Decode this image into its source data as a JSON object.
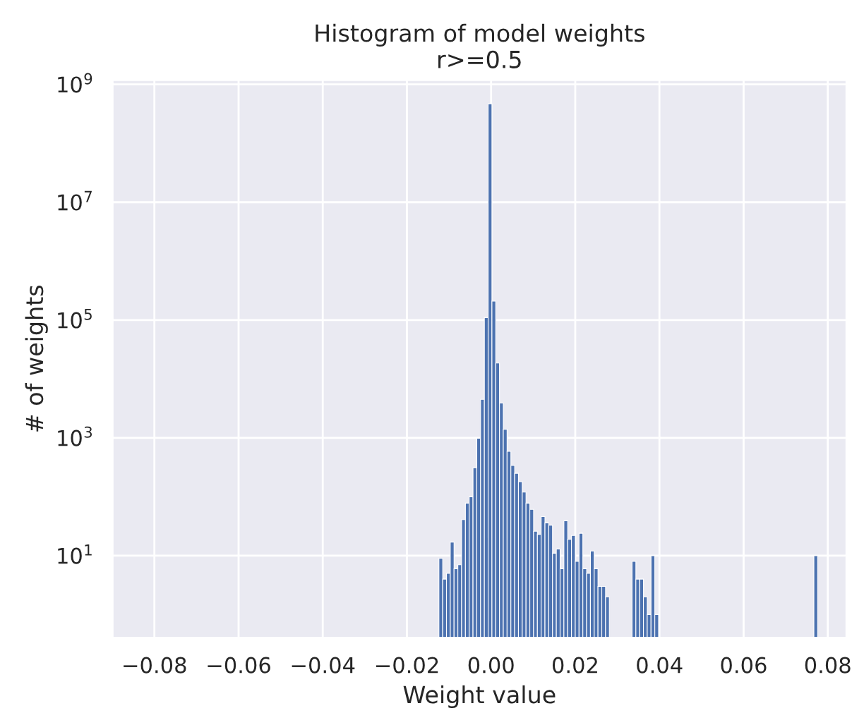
{
  "chart_data": {
    "type": "histogram",
    "title": "Histogram of model weights\nr>=0.5",
    "xlabel": "Weight value",
    "ylabel": "# of weights",
    "bins": [
      -0.0124,
      -0.0115,
      -0.0106,
      -0.0097,
      -0.0088,
      -0.0079,
      -0.007,
      -0.0061,
      -0.0052,
      -0.0043,
      -0.0034,
      -0.0025,
      -0.0016,
      -0.0007,
      0.0002,
      0.0011,
      0.002,
      0.0029,
      0.0038,
      0.0047,
      0.0056,
      0.0065,
      0.0074,
      0.0083,
      0.0092,
      0.0101,
      0.011,
      0.0119,
      0.0128,
      0.0137,
      0.0146,
      0.0155,
      0.0164,
      0.0173,
      0.0182,
      0.0191,
      0.02,
      0.0209,
      0.0218,
      0.0227,
      0.0236,
      0.0245,
      0.0254,
      0.0263,
      0.0272,
      0.0281,
      0.029,
      0.0299,
      0.0308,
      0.0317,
      0.0326,
      0.0335,
      0.0344,
      0.0353,
      0.0362,
      0.0371,
      0.038,
      0.0389,
      0.0398,
      0.0407,
      0.0416,
      0.0425,
      0.0434,
      0.0443,
      0.0452,
      0.0461,
      0.047,
      0.0479,
      0.0488,
      0.0497,
      0.0506,
      0.0515,
      0.0524,
      0.0533,
      0.0542,
      0.0551,
      0.056,
      0.0569,
      0.0578,
      0.0587,
      0.0596,
      0.0605,
      0.0614,
      0.0623,
      0.0632,
      0.0641,
      0.065,
      0.0659,
      0.0668,
      0.0677,
      0.0686,
      0.0695,
      0.0704,
      0.0713,
      0.0722,
      0.0731,
      0.074,
      0.0749,
      0.0758,
      0.0767,
      0.0776
    ],
    "values": [
      9,
      4,
      5,
      17,
      6,
      7,
      41,
      78,
      100,
      310,
      980,
      4500,
      110000,
      470000000,
      210000,
      18600,
      3900,
      1400,
      590,
      340,
      250,
      180,
      120,
      78,
      61,
      26,
      23,
      46,
      36,
      33,
      11,
      13,
      6,
      39,
      19,
      22,
      8,
      24,
      6,
      5,
      12,
      6,
      3,
      3,
      2,
      null,
      null,
      null,
      null,
      null,
      null,
      8,
      4,
      4,
      2,
      1,
      10,
      1,
      null,
      null,
      null,
      null,
      null,
      null,
      null,
      null,
      null,
      null,
      null,
      null,
      null,
      null,
      null,
      null,
      null,
      null,
      null,
      null,
      null,
      null,
      null,
      null,
      null,
      null,
      null,
      null,
      null,
      null,
      null,
      null,
      null,
      null,
      null,
      null,
      null,
      null,
      null,
      null,
      null,
      10
    ],
    "color": "#4c72b0",
    "log": "y",
    "grid": true,
    "xlim": [
      -0.09,
      0.0845
    ],
    "ylim": [
      0.4,
      1200000000.0
    ],
    "xticks": [
      {
        "value": -0.08,
        "label": "−0.08"
      },
      {
        "value": -0.06,
        "label": "−0.06"
      },
      {
        "value": -0.04,
        "label": "−0.04"
      },
      {
        "value": -0.02,
        "label": "−0.02"
      },
      {
        "value": 0.0,
        "label": "0.00"
      },
      {
        "value": 0.02,
        "label": "0.02"
      },
      {
        "value": 0.04,
        "label": "0.04"
      },
      {
        "value": 0.06,
        "label": "0.06"
      },
      {
        "value": 0.08,
        "label": "0.08"
      }
    ],
    "yticks": [
      {
        "value": 10,
        "label": "10$^{1}$"
      },
      {
        "value": 1000,
        "label": "10$^{3}$"
      },
      {
        "value": 100000,
        "label": "10$^{5}$"
      },
      {
        "value": 10000000,
        "label": "10$^{7}$"
      },
      {
        "value": 1000000000,
        "label": "10$^{9}$"
      }
    ]
  }
}
